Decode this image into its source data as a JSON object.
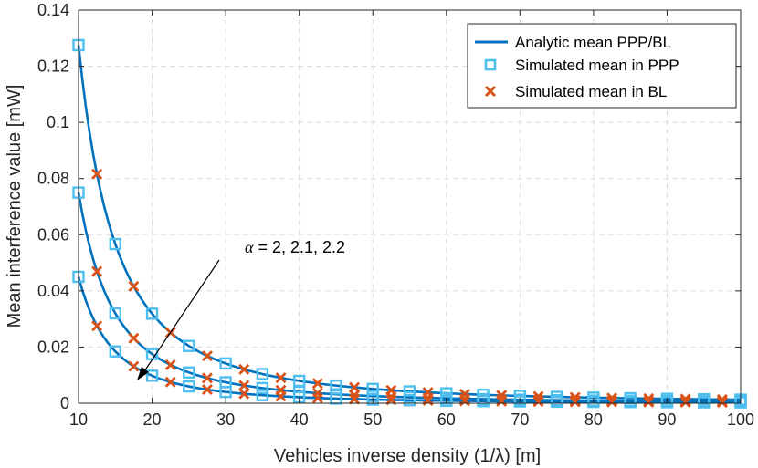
{
  "chart_data": {
    "type": "line",
    "xlabel": "Vehicles inverse density (1/λ) [m]",
    "ylabel": "Mean interference value [mW]",
    "xlim": [
      10,
      100
    ],
    "ylim": [
      0,
      0.14
    ],
    "xticks": [
      "10",
      "20",
      "30",
      "40",
      "50",
      "60",
      "70",
      "80",
      "90",
      "100"
    ],
    "yticks": [
      "0",
      "0.02",
      "0.04",
      "0.06",
      "0.08",
      "0.1",
      "0.12",
      "0.14"
    ],
    "grid": true,
    "legend_position": "top-right",
    "legend": {
      "analytic": "Analytic mean PPP/BL",
      "ppp": "Simulated mean in PPP",
      "bl": "Simulated mean in BL"
    },
    "annotation": {
      "alpha_symbol": "α",
      "text": " = 2, 2.1, 2.2"
    },
    "alpha_values": [
      2,
      2.1,
      2.2
    ],
    "analytic_base_values_at_x10": [
      0.1275,
      0.075,
      0.045
    ],
    "analytic_model": "I(x) = I(10) * (10/x)^alpha",
    "ppp_x": [
      10,
      15,
      20,
      25,
      30,
      35,
      40,
      45,
      50,
      55,
      60,
      65,
      70,
      75,
      80,
      85,
      90,
      95,
      100
    ],
    "bl_x": [
      12.5,
      17.5,
      22.5,
      27.5,
      32.5,
      37.5,
      42.5,
      47.5,
      52.5,
      57.5,
      62.5,
      67.5,
      72.5,
      77.5,
      82.5,
      87.5,
      92.5,
      97.5
    ],
    "colors": {
      "analytic": "#0072BD",
      "ppp": "#4DBEEE",
      "bl": "#D95319"
    }
  }
}
